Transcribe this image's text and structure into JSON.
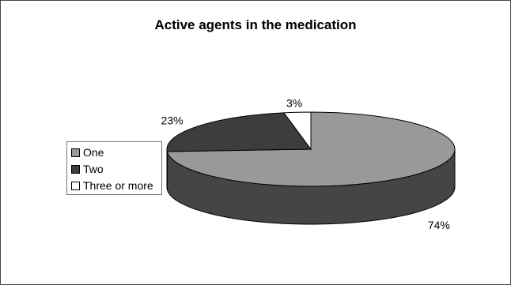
{
  "chart_data": {
    "type": "pie",
    "title": "Active agents in the medication",
    "categories": [
      "One",
      "Two",
      "Three or more"
    ],
    "values": [
      74,
      23,
      3
    ],
    "labels": [
      "74%",
      "23%",
      "3%"
    ],
    "colors": [
      "#999999",
      "#3d3d3d",
      "#ffffff"
    ],
    "legend_position": "left",
    "three_d": true
  }
}
